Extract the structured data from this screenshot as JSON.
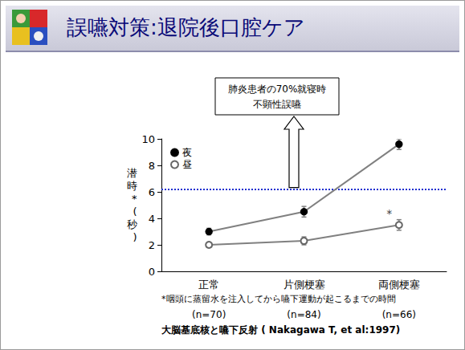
{
  "chart_data": {
    "type": "line",
    "title": "誤嚥対策:退院後口腔ケア",
    "y_label": "潜時*(秒)",
    "categories": [
      "正常",
      "片側梗塞",
      "両側梗塞"
    ],
    "series": [
      {
        "name": "夜",
        "color": "#000000",
        "marker": "circle",
        "values": [
          3.0,
          4.5,
          9.6
        ],
        "errors": [
          0.25,
          0.4,
          0.4
        ]
      },
      {
        "name": "昼",
        "color": "#666666",
        "marker": "open_circle",
        "values": [
          2.0,
          2.3,
          3.5
        ],
        "errors": [
          0.2,
          0.3,
          0.4
        ]
      }
    ],
    "ylim": [
      0,
      10
    ],
    "yticks": [
      0,
      2,
      4,
      6,
      8,
      10
    ],
    "grid": false,
    "legend": "upper left",
    "reference_line": {
      "value": 6.2,
      "color": "#1f2fd0",
      "line_style": "dotted"
    },
    "annotation": {
      "lines": [
        "肺炎患者の70%就寝時",
        "不顕性誤嚥"
      ]
    },
    "marks": [
      {
        "series": "昼",
        "category": "両側梗塞",
        "text": "*"
      }
    ],
    "footnote": "*咽頭に蒸留水を注入してから嚥下運動が起こるまでの時間",
    "sample_sizes": [
      "(n=70)",
      "(n=84)",
      "(n=66)"
    ],
    "source": "大脳基底核と嚥下反射 ( Nakagawa T, et al:1997)"
  }
}
